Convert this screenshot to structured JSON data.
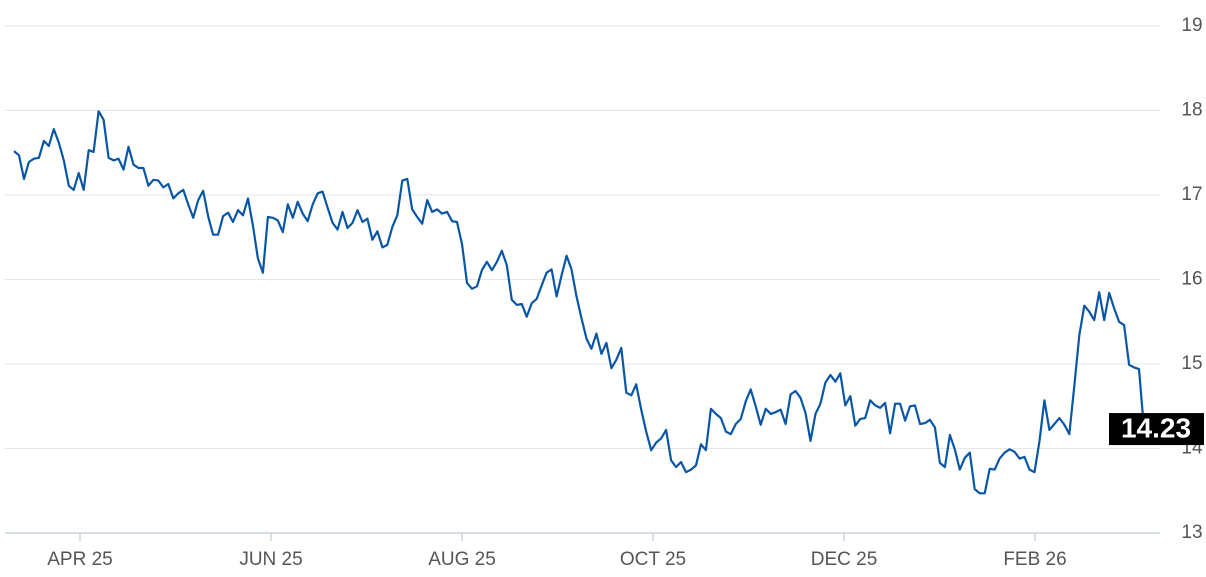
{
  "chart_data": {
    "type": "line",
    "color": "#0a56a6",
    "ylim": [
      13,
      19
    ],
    "yticks": [
      13,
      14,
      15,
      16,
      17,
      18,
      19
    ],
    "grid": true,
    "x_labels": [
      "APR 25",
      "JUN 25",
      "AUG 25",
      "OCT 25",
      "DEC 25",
      "FEB 26"
    ],
    "values": [
      17.52,
      17.47,
      17.19,
      17.39,
      17.43,
      17.44,
      17.64,
      17.58,
      17.78,
      17.62,
      17.41,
      17.11,
      17.06,
      17.26,
      17.06,
      17.53,
      17.51,
      17.99,
      17.89,
      17.44,
      17.41,
      17.43,
      17.3,
      17.57,
      17.36,
      17.32,
      17.32,
      17.11,
      17.18,
      17.17,
      17.09,
      17.13,
      16.96,
      17.02,
      17.06,
      16.89,
      16.73,
      16.94,
      17.05,
      16.75,
      16.53,
      16.53,
      16.75,
      16.79,
      16.68,
      16.82,
      16.76,
      16.96,
      16.64,
      16.25,
      16.08,
      16.74,
      16.73,
      16.7,
      16.56,
      16.89,
      16.73,
      16.92,
      16.78,
      16.69,
      16.89,
      17.02,
      17.04,
      16.85,
      16.67,
      16.59,
      16.8,
      16.61,
      16.67,
      16.82,
      16.68,
      16.72,
      16.47,
      16.57,
      16.38,
      16.41,
      16.62,
      16.76,
      17.17,
      17.19,
      16.83,
      16.74,
      16.66,
      16.94,
      16.8,
      16.83,
      16.78,
      16.8,
      16.69,
      16.68,
      16.42,
      15.96,
      15.89,
      15.92,
      16.11,
      16.21,
      16.11,
      16.21,
      16.34,
      16.17,
      15.76,
      15.7,
      15.71,
      15.56,
      15.72,
      15.77,
      15.93,
      16.08,
      16.12,
      15.8,
      16.05,
      16.28,
      16.12,
      15.8,
      15.54,
      15.3,
      15.18,
      15.36,
      15.12,
      15.25,
      14.95,
      15.05,
      15.19,
      14.66,
      14.63,
      14.76,
      14.46,
      14.2,
      13.98,
      14.07,
      14.12,
      14.22,
      13.86,
      13.78,
      13.84,
      13.72,
      13.75,
      13.8,
      14.05,
      13.98,
      14.47,
      14.41,
      14.36,
      14.2,
      14.17,
      14.29,
      14.35,
      14.56,
      14.7,
      14.5,
      14.28,
      14.47,
      14.41,
      14.43,
      14.46,
      14.29,
      14.64,
      14.68,
      14.6,
      14.42,
      14.09,
      14.41,
      14.53,
      14.78,
      14.87,
      14.79,
      14.89,
      14.51,
      14.62,
      14.27,
      14.35,
      14.36,
      14.57,
      14.51,
      14.48,
      14.54,
      14.18,
      14.53,
      14.53,
      14.33,
      14.5,
      14.51,
      14.29,
      14.3,
      14.34,
      14.25,
      13.83,
      13.78,
      14.16,
      13.99,
      13.75,
      13.89,
      13.95,
      13.52,
      13.47,
      13.47,
      13.76,
      13.75,
      13.88,
      13.95,
      13.99,
      13.96,
      13.88,
      13.9,
      13.75,
      13.72,
      14.09,
      14.57,
      14.22,
      14.29,
      14.36,
      14.28,
      14.17,
      14.74,
      15.34,
      15.69,
      15.62,
      15.52,
      15.85,
      15.52,
      15.84,
      15.66,
      15.5,
      15.46,
      14.99,
      14.96,
      14.94,
      14.23
    ]
  }
}
